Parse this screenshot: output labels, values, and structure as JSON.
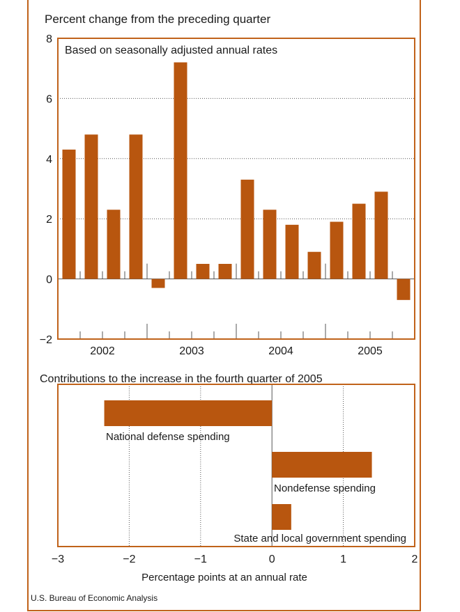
{
  "colors": {
    "bar": "#b8560f",
    "axis": "#c0621a",
    "grid": "#555555",
    "text": "#1a1a1a"
  },
  "chart_data": [
    {
      "type": "bar",
      "title": "Percent change from the preceding quarter",
      "subtitle": "Based on seasonally adjusted annual rates",
      "year_labels": [
        "2002",
        "2003",
        "2004",
        "2005"
      ],
      "categories": [
        "2002 Q1",
        "2002 Q2",
        "2002 Q3",
        "2002 Q4",
        "2003 Q1",
        "2003 Q2",
        "2003 Q3",
        "2003 Q4",
        "2004 Q1",
        "2004 Q2",
        "2004 Q3",
        "2004 Q4",
        "2005 Q1",
        "2005 Q2",
        "2005 Q3",
        "2005 Q4"
      ],
      "values": [
        4.3,
        4.8,
        2.3,
        4.8,
        -0.3,
        7.2,
        0.5,
        0.5,
        3.3,
        2.3,
        1.8,
        0.9,
        1.9,
        2.5,
        2.9,
        -0.7
      ],
      "ylim": [
        -2,
        8
      ],
      "yticks": [
        "−2",
        "0",
        "2",
        "4",
        "6",
        "8"
      ],
      "grid": true
    },
    {
      "type": "bar",
      "orientation": "horizontal",
      "title": "Contributions to the increase in the fourth quarter of 2005",
      "xlabel": "Percentage points at an annual rate",
      "categories": [
        "National defense spending",
        "Nondefense spending",
        "State and local government spending"
      ],
      "values": [
        -2.35,
        1.4,
        0.27
      ],
      "xlim": [
        -3,
        2
      ],
      "xticks": [
        "−3",
        "−2",
        "−1",
        "0",
        "1",
        "2"
      ],
      "grid": true
    }
  ],
  "source": "U.S. Bureau of Economic Analysis"
}
